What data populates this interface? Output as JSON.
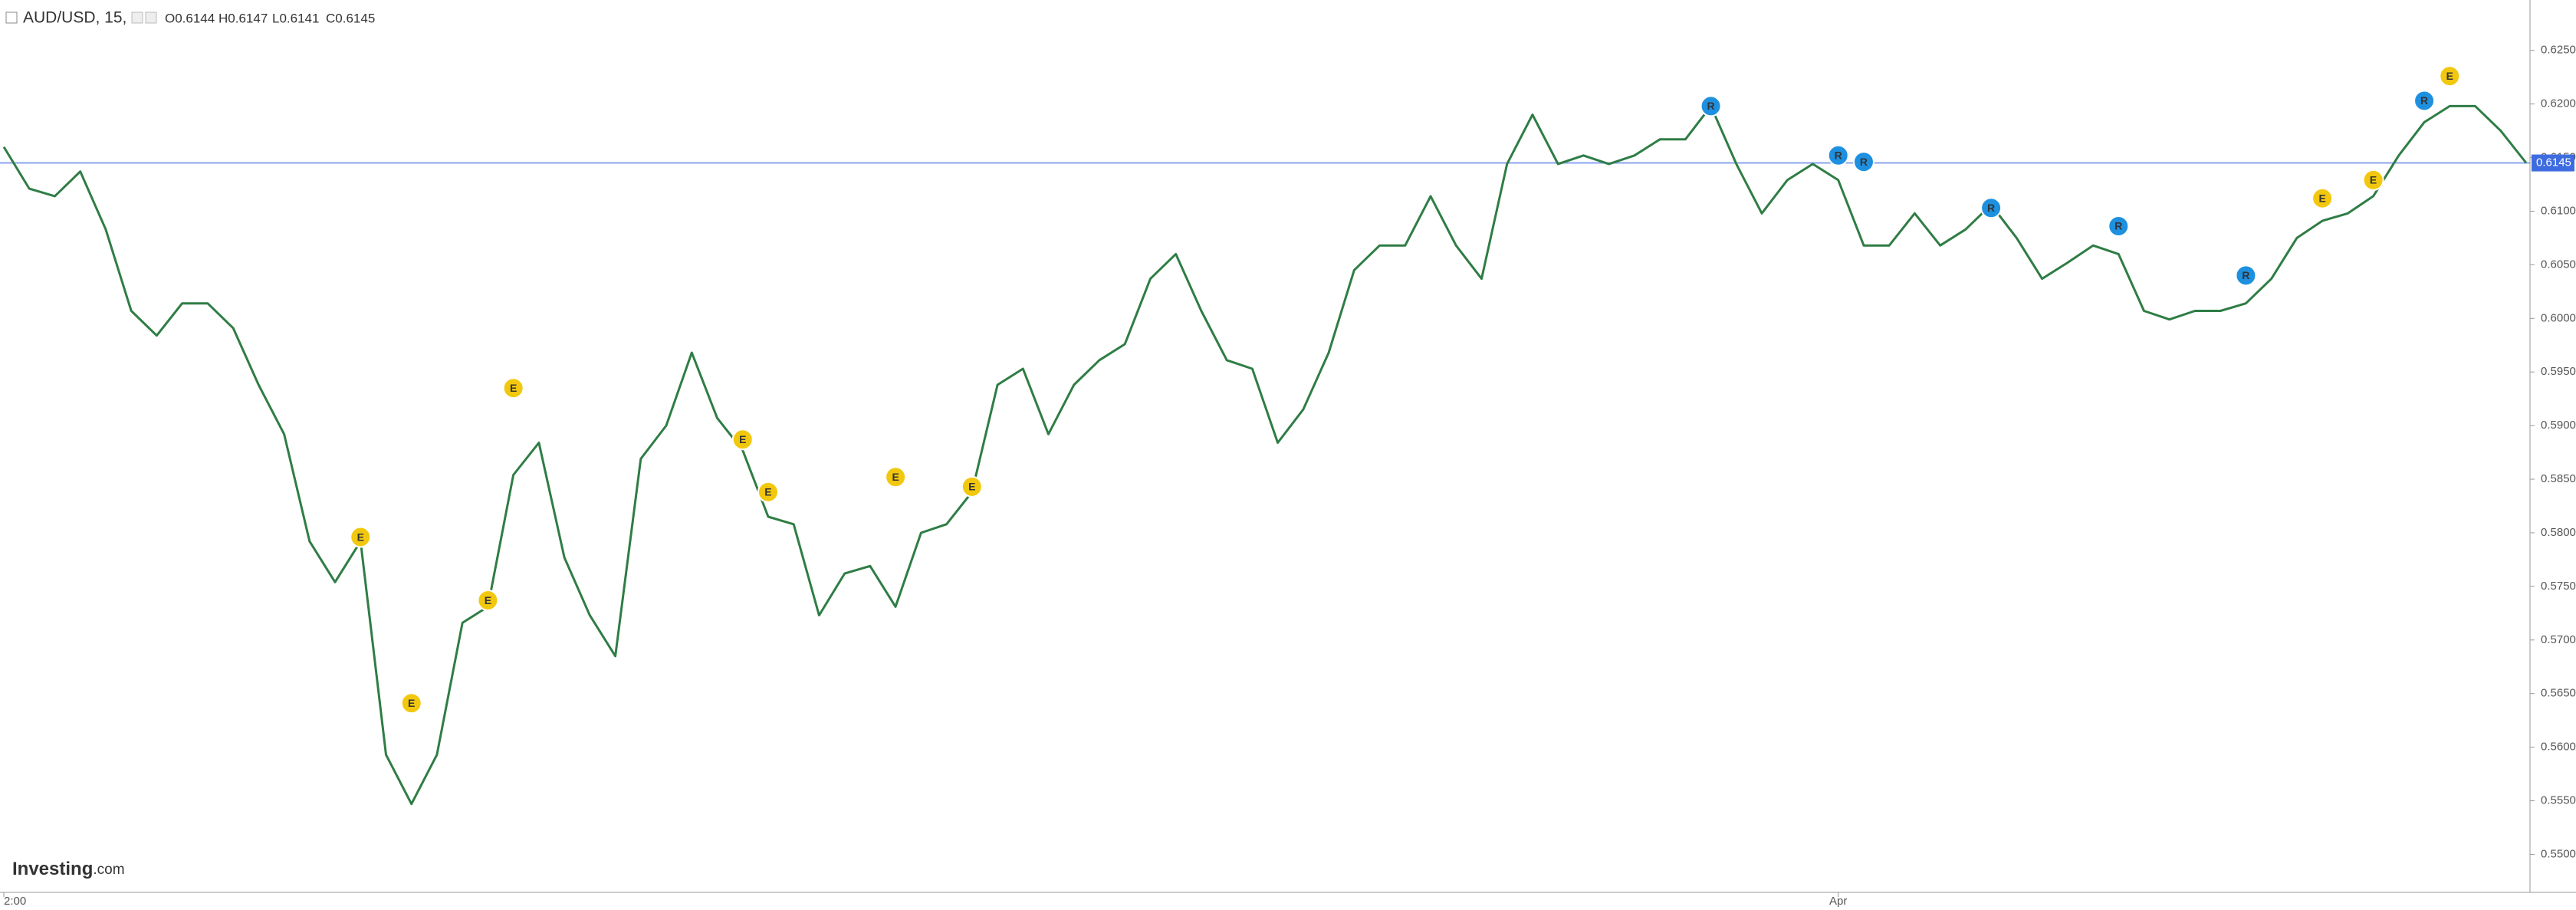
{
  "header": {
    "symbol": "AUD/USD, 15,",
    "open": "O0.6144",
    "high": "H0.6147",
    "low": "L0.6141",
    "close": "C0.6145"
  },
  "logo": {
    "brand": "Investing",
    "suffix": ".com"
  },
  "chart_data": {
    "type": "line",
    "categories": [
      "2:00",
      null,
      null,
      null,
      null,
      null,
      null,
      null,
      null,
      null,
      null,
      null,
      null,
      null,
      null,
      null,
      null,
      null,
      null,
      null,
      null,
      null,
      null,
      null,
      null,
      null,
      null,
      null,
      null,
      null,
      null,
      null,
      null,
      null,
      null,
      null,
      null,
      null,
      null,
      null,
      null,
      null,
      null,
      null,
      null,
      null,
      null,
      null,
      null,
      null,
      null,
      null,
      null,
      null,
      null,
      null,
      null,
      null,
      null,
      null,
      null,
      null,
      null,
      null,
      null,
      null,
      null,
      null,
      null,
      null,
      null,
      null,
      "Apr",
      null,
      null,
      null,
      null,
      null,
      null,
      null,
      null,
      null,
      null,
      null,
      null,
      null,
      null,
      null,
      null,
      null,
      null,
      null,
      null,
      null,
      null,
      null,
      null,
      null,
      null,
      null
    ],
    "series": [
      {
        "name": "AUD/USD",
        "color": "#2f7d45",
        "values": [
          0.616,
          0.6121,
          0.6114,
          0.6137,
          0.6083,
          0.6007,
          0.5984,
          0.6014,
          0.6014,
          0.5991,
          0.5938,
          0.5892,
          0.5792,
          0.5754,
          0.5792,
          0.5593,
          0.5547,
          0.5593,
          0.5716,
          0.5731,
          0.5854,
          0.5884,
          0.5777,
          0.5723,
          0.5685,
          0.5869,
          0.59,
          0.5968,
          0.5907,
          0.5877,
          0.5815,
          0.5808,
          0.5723,
          0.5762,
          0.5769,
          0.5731,
          0.58,
          0.5808,
          0.5838,
          0.5938,
          0.5953,
          0.5892,
          0.5938,
          0.5961,
          0.5976,
          0.6037,
          0.606,
          0.6007,
          0.5961,
          0.5953,
          0.5884,
          0.5915,
          0.5968,
          0.6045,
          0.6068,
          0.6068,
          0.6114,
          0.6068,
          0.6037,
          0.6144,
          0.619,
          0.6144,
          0.6152,
          0.6144,
          0.6152,
          0.6167,
          0.6167,
          0.6198,
          0.6144,
          0.6098,
          0.6129,
          0.6144,
          0.6129,
          0.6068,
          0.6068,
          0.6098,
          0.6068,
          0.6083,
          0.6106,
          0.6075,
          0.6037,
          0.6052,
          0.6068,
          0.606,
          0.6007,
          0.5999,
          0.6007,
          0.6007,
          0.6014,
          0.6037,
          0.6075,
          0.6091,
          0.6098,
          0.6114,
          0.6152,
          0.6183,
          0.6198,
          0.6198,
          0.6175,
          0.6145
        ]
      }
    ],
    "ylim": [
      0.5466,
      0.6297
    ],
    "yticks": [
      {
        "value": 0.55,
        "label": "0.5500"
      },
      {
        "value": 0.555,
        "label": "0.5550"
      },
      {
        "value": 0.56,
        "label": "0.5600"
      },
      {
        "value": 0.565,
        "label": "0.5650"
      },
      {
        "value": 0.57,
        "label": "0.5700"
      },
      {
        "value": 0.575,
        "label": "0.5750"
      },
      {
        "value": 0.58,
        "label": "0.5800"
      },
      {
        "value": 0.585,
        "label": "0.5850"
      },
      {
        "value": 0.59,
        "label": "0.5900"
      },
      {
        "value": 0.595,
        "label": "0.5950"
      },
      {
        "value": 0.6,
        "label": "0.6000"
      },
      {
        "value": 0.605,
        "label": "0.6050"
      },
      {
        "value": 0.61,
        "label": "0.6100"
      },
      {
        "value": 0.615,
        "label": "0.6150"
      },
      {
        "value": 0.62,
        "label": "0.6200"
      },
      {
        "value": 0.625,
        "label": "0.6250"
      }
    ],
    "last_price": {
      "value": 0.6145,
      "label": "0.6145",
      "color": "#3d6be0"
    },
    "events": [
      {
        "at": 14,
        "value": 0.5796,
        "label": "E",
        "color": "#f2c80f"
      },
      {
        "at": 16,
        "value": 0.5641,
        "label": "E",
        "color": "#f2c80f"
      },
      {
        "at": 19,
        "value": 0.5737,
        "label": "E",
        "color": "#f2c80f"
      },
      {
        "at": 20,
        "value": 0.5935,
        "label": "E",
        "color": "#f2c80f"
      },
      {
        "at": 29,
        "value": 0.5887,
        "label": "E",
        "color": "#f2c80f"
      },
      {
        "at": 30,
        "value": 0.5838,
        "label": "E",
        "color": "#f2c80f"
      },
      {
        "at": 35,
        "value": 0.5852,
        "label": "E",
        "color": "#f2c80f"
      },
      {
        "at": 38,
        "value": 0.5843,
        "label": "E",
        "color": "#f2c80f"
      },
      {
        "at": 91,
        "value": 0.6112,
        "label": "E",
        "color": "#f2c80f"
      },
      {
        "at": 93,
        "value": 0.6129,
        "label": "E",
        "color": "#f2c80f"
      },
      {
        "at": 96,
        "value": 0.6226,
        "label": "E",
        "color": "#f2c80f"
      },
      {
        "at": 67,
        "value": 0.6198,
        "label": "R",
        "color": "#1e90e0"
      },
      {
        "at": 72,
        "value": 0.6152,
        "label": "R",
        "color": "#1e90e0"
      },
      {
        "at": 73,
        "value": 0.6146,
        "label": "R",
        "color": "#1e90e0"
      },
      {
        "at": 78,
        "value": 0.6103,
        "label": "R",
        "color": "#1e90e0"
      },
      {
        "at": 83,
        "value": 0.6086,
        "label": "R",
        "color": "#1e90e0"
      },
      {
        "at": 88,
        "value": 0.604,
        "label": "R",
        "color": "#1e90e0"
      },
      {
        "at": 95,
        "value": 0.6203,
        "label": "R",
        "color": "#1e90e0"
      }
    ]
  }
}
